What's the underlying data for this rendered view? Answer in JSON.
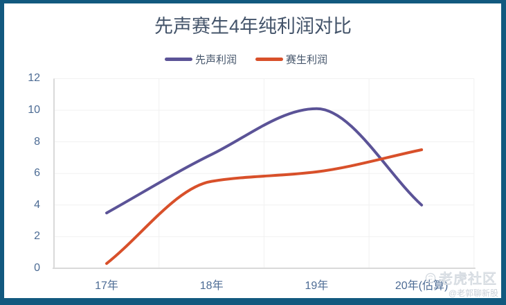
{
  "chart_data": {
    "type": "line",
    "title": "先声赛生4年纯利润对比",
    "categories": [
      "17年",
      "18年",
      "19年",
      "20年(估算)"
    ],
    "series": [
      {
        "name": "先声利润",
        "color": "#5B5397",
        "values": [
          3.5,
          7.2,
          10.1,
          4.0
        ]
      },
      {
        "name": "赛生利润",
        "color": "#D8502A",
        "values": [
          0.3,
          5.5,
          6.1,
          7.5
        ]
      }
    ],
    "ylim": [
      0,
      12
    ],
    "yticks": [
      0,
      2,
      4,
      6,
      8,
      10,
      12
    ],
    "grid": true,
    "smooth": true,
    "legend_position": "top"
  },
  "watermark": {
    "brand": "老虎社区",
    "author": "@老郭聊新股"
  },
  "colors": {
    "frame": "#12597F",
    "title": "#44546A",
    "axis_label": "#4C6B94",
    "grid": "#F1F1F1",
    "axis_line": "#D9D9D9"
  }
}
